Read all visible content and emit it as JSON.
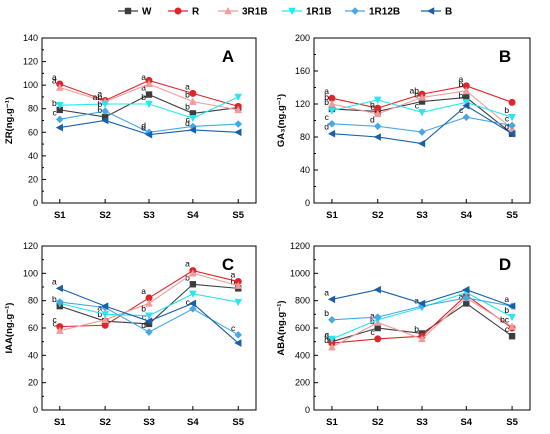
{
  "legend": {
    "items": [
      {
        "name": "W",
        "color": "#3d3d3d",
        "marker": "square"
      },
      {
        "name": "R",
        "color": "#e0252a",
        "marker": "circle"
      },
      {
        "name": "3R1B",
        "color": "#f39a9a",
        "marker": "triangle-up"
      },
      {
        "name": "1R1B",
        "color": "#28e6f0",
        "marker": "triangle-down"
      },
      {
        "name": "1R12B",
        "color": "#48a8e6",
        "marker": "diamond"
      },
      {
        "name": "B",
        "color": "#1a5fa8",
        "marker": "triangle-left"
      }
    ]
  },
  "chart_data": [
    {
      "type": "line",
      "panel": "A",
      "ylabel": "ZR(ng.g⁻¹)",
      "categories": [
        "S1",
        "S2",
        "S3",
        "S4",
        "S5"
      ],
      "ylim": [
        0,
        140
      ],
      "yticks": [
        0,
        20,
        40,
        60,
        80,
        100,
        120,
        140
      ],
      "grid": false,
      "series": [
        {
          "name": "W",
          "values": [
            79,
            73,
            92,
            76,
            81
          ],
          "labels": [
            "b",
            "b",
            "a",
            "b",
            ""
          ]
        },
        {
          "name": "R",
          "values": [
            101,
            87,
            104,
            93,
            82
          ],
          "labels": [
            "a",
            "a",
            "",
            "a",
            ""
          ]
        },
        {
          "name": "3R1B",
          "values": [
            98,
            86,
            101,
            86,
            79
          ],
          "labels": [
            "a",
            "",
            "a",
            "b",
            ""
          ]
        },
        {
          "name": "1R1B",
          "values": [
            83,
            84,
            84,
            72,
            90
          ],
          "labels": [
            "",
            "ab",
            "b",
            "",
            ""
          ]
        },
        {
          "name": "1R12B",
          "values": [
            71,
            78,
            60,
            65,
            67
          ],
          "labels": [
            "c",
            "b",
            "d",
            "c",
            ""
          ]
        },
        {
          "name": "B",
          "values": [
            64,
            70,
            58,
            62,
            60
          ],
          "labels": [
            "",
            "",
            "d",
            "d",
            ""
          ]
        }
      ]
    },
    {
      "type": "line",
      "panel": "B",
      "ylabel": "GA₃(ng.g⁻¹)",
      "categories": [
        "S1",
        "S2",
        "S3",
        "S4",
        "S5"
      ],
      "ylim": [
        0,
        200
      ],
      "yticks": [
        0,
        40,
        80,
        120,
        160,
        200
      ],
      "grid": false,
      "series": [
        {
          "name": "W",
          "values": [
            114,
            111,
            123,
            128,
            84
          ],
          "labels": [
            "b",
            "b",
            "b",
            "",
            ""
          ]
        },
        {
          "name": "R",
          "values": [
            127,
            115,
            132,
            142,
            122
          ],
          "labels": [
            "a",
            "",
            "",
            "a",
            ""
          ]
        },
        {
          "name": "3R1B",
          "values": [
            120,
            108,
            128,
            136,
            90
          ],
          "labels": [
            "b",
            "c",
            "ab",
            "b",
            ""
          ]
        },
        {
          "name": "1R1B",
          "values": [
            112,
            125,
            110,
            122,
            104
          ],
          "labels": [
            "",
            "",
            "c",
            "b",
            "b"
          ]
        },
        {
          "name": "1R12B",
          "values": [
            96,
            93,
            86,
            104,
            94
          ],
          "labels": [
            "c",
            "d",
            "",
            "c",
            "c"
          ]
        },
        {
          "name": "B",
          "values": [
            84,
            80,
            72,
            118,
            84
          ],
          "labels": [
            "d",
            "",
            "",
            "",
            "d"
          ]
        }
      ]
    },
    {
      "type": "line",
      "panel": "C",
      "ylabel": "IAA(ng.g⁻¹)",
      "categories": [
        "S1",
        "S2",
        "S3",
        "S4",
        "S5"
      ],
      "ylim": [
        0,
        120
      ],
      "yticks": [
        0,
        20,
        40,
        60,
        80,
        100,
        120
      ],
      "grid": false,
      "series": [
        {
          "name": "W",
          "values": [
            76,
            65,
            63,
            92,
            89
          ],
          "labels": [
            "b",
            "b",
            "c",
            "b",
            "b"
          ]
        },
        {
          "name": "R",
          "values": [
            61,
            62,
            82,
            102,
            94
          ],
          "labels": [
            "c",
            "",
            "a",
            "a",
            "a"
          ]
        },
        {
          "name": "3R1B",
          "values": [
            58,
            66,
            78,
            100,
            91
          ],
          "labels": [
            "c",
            "",
            "",
            "",
            ""
          ]
        },
        {
          "name": "1R1B",
          "values": [
            78,
            70,
            69,
            85,
            79
          ],
          "labels": [
            "",
            "a",
            "b",
            "",
            ""
          ]
        },
        {
          "name": "1R12B",
          "values": [
            79,
            75,
            57,
            74,
            55
          ],
          "labels": [
            "",
            "",
            "d",
            "c",
            "c"
          ]
        },
        {
          "name": "B",
          "values": [
            89,
            76,
            65,
            78,
            49
          ],
          "labels": [
            "a",
            "",
            "",
            "",
            ""
          ]
        }
      ]
    },
    {
      "type": "line",
      "panel": "D",
      "ylabel": "ABA(ng.g⁻¹)",
      "categories": [
        "S1",
        "S2",
        "S3",
        "S4",
        "S5"
      ],
      "ylim": [
        0,
        1200
      ],
      "yticks": [
        0,
        200,
        400,
        600,
        800,
        1000,
        1200
      ],
      "grid": false,
      "series": [
        {
          "name": "W",
          "values": [
            500,
            600,
            560,
            780,
            540
          ],
          "labels": [
            "c",
            "b",
            "",
            "a",
            "c"
          ]
        },
        {
          "name": "R",
          "values": [
            490,
            520,
            540,
            840,
            600
          ],
          "labels": [
            "d",
            "c",
            "b",
            "",
            ""
          ]
        },
        {
          "name": "3R1B",
          "values": [
            460,
            640,
            520,
            820,
            610
          ],
          "labels": [
            "d",
            "a",
            "",
            "",
            "bc"
          ]
        },
        {
          "name": "1R1B",
          "values": [
            520,
            660,
            750,
            860,
            680
          ],
          "labels": [
            "",
            "",
            "a",
            "",
            "b"
          ]
        },
        {
          "name": "1R12B",
          "values": [
            660,
            680,
            760,
            820,
            760
          ],
          "labels": [
            "b",
            "",
            "",
            "",
            ""
          ]
        },
        {
          "name": "B",
          "values": [
            810,
            880,
            780,
            880,
            760
          ],
          "labels": [
            "a",
            "",
            "",
            "",
            "a"
          ]
        }
      ]
    }
  ]
}
